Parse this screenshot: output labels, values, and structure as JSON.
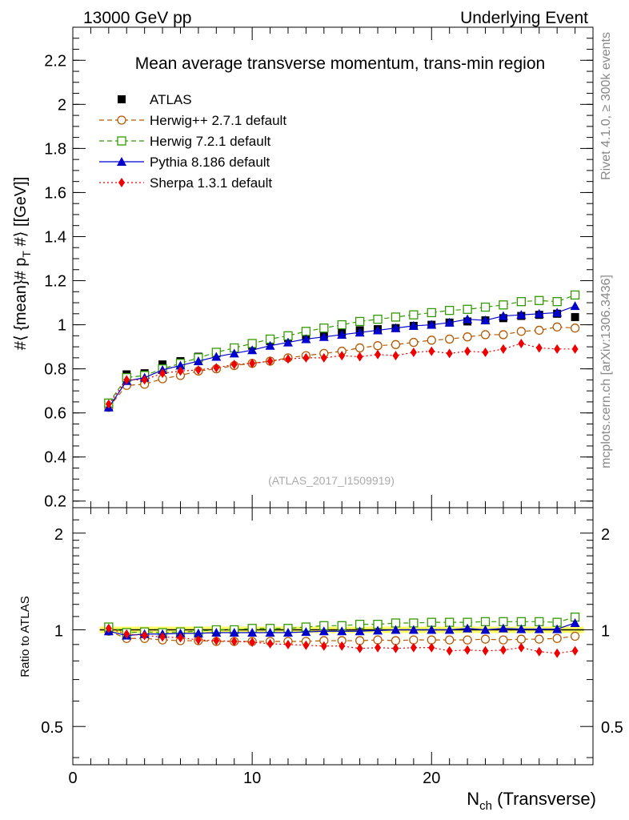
{
  "header": {
    "left": "13000 GeV pp",
    "right": "Underlying Event"
  },
  "side_labels": {
    "rivet": "Rivet 4.1.0, ≥ 300k events",
    "mcplots": "mcplots.cern.ch [arXiv:1306.3436]"
  },
  "chart_data": [
    {
      "type": "scatter",
      "title": "Mean average transverse momentum, trans-min region",
      "ylabel": "#⟨ {mean}# p_T #⟩ [[GeV]]",
      "ylabel_parts": {
        "pre": "#⟨ {mean}# p",
        "sub": "T",
        "post": " #⟩ [[GeV]]"
      },
      "xlabel": "N_ch (Transverse)",
      "xlabel_parts": {
        "main": "N",
        "sub": "ch",
        "post": " (Transverse)"
      },
      "watermark": "(ATLAS_2017_I1509919)",
      "xlim": [
        0,
        29
      ],
      "ylim": [
        0.17,
        2.35
      ],
      "y_ticks": [
        0.2,
        0.4,
        0.6,
        0.8,
        1.0,
        1.2,
        1.4,
        1.6,
        1.8,
        2.0,
        2.2
      ],
      "y_tick_labels": [
        "0.2",
        "0.4",
        "0.6",
        "0.8",
        "1",
        "1.2",
        "1.4",
        "1.6",
        "1.8",
        "2",
        "2.2"
      ],
      "legend_position": "top-left",
      "x": [
        2,
        3,
        4,
        5,
        6,
        7,
        8,
        9,
        10,
        11,
        12,
        13,
        14,
        15,
        16,
        17,
        18,
        19,
        20,
        21,
        22,
        23,
        24,
        25,
        26,
        27,
        28
      ],
      "series": [
        {
          "name": "ATLAS",
          "color": "#000000",
          "marker": "filled-square",
          "line": "none",
          "values": [
            0.63,
            0.775,
            0.78,
            0.82,
            0.835,
            0.855,
            0.87,
            0.895,
            0.905,
            0.925,
            0.94,
            0.95,
            0.955,
            0.965,
            0.975,
            0.98,
            0.985,
            0.995,
            1.0,
            1.01,
            1.015,
            1.02,
            1.03,
            1.04,
            1.045,
            1.05,
            1.035
          ]
        },
        {
          "name": "Herwig++ 2.7.1 default",
          "color": "#b35900",
          "marker": "open-circle",
          "line": "dashed",
          "values": [
            0.625,
            0.725,
            0.73,
            0.755,
            0.77,
            0.79,
            0.8,
            0.815,
            0.825,
            0.835,
            0.85,
            0.86,
            0.87,
            0.88,
            0.895,
            0.905,
            0.91,
            0.92,
            0.93,
            0.935,
            0.945,
            0.955,
            0.955,
            0.97,
            0.975,
            0.99,
            0.985
          ]
        },
        {
          "name": "Herwig 7.2.1 default",
          "color": "#339900",
          "marker": "open-square",
          "line": "dashed",
          "values": [
            0.645,
            0.76,
            0.77,
            0.8,
            0.825,
            0.85,
            0.875,
            0.895,
            0.915,
            0.935,
            0.95,
            0.97,
            0.985,
            1.0,
            1.015,
            1.025,
            1.035,
            1.045,
            1.055,
            1.065,
            1.07,
            1.08,
            1.09,
            1.105,
            1.11,
            1.105,
            1.135
          ]
        },
        {
          "name": "Pythia 8.186 default",
          "color": "#0000cc",
          "marker": "filled-triangle",
          "line": "solid",
          "values": [
            0.625,
            0.745,
            0.76,
            0.795,
            0.815,
            0.835,
            0.855,
            0.87,
            0.885,
            0.905,
            0.92,
            0.935,
            0.945,
            0.955,
            0.965,
            0.975,
            0.985,
            0.995,
            1.0,
            1.01,
            1.025,
            1.02,
            1.04,
            1.045,
            1.05,
            1.055,
            1.085
          ]
        },
        {
          "name": "Sherpa 1.3.1 default",
          "color": "#ee0000",
          "marker": "filled-diamond",
          "line": "dotted",
          "values": [
            0.64,
            0.75,
            0.75,
            0.78,
            0.79,
            0.795,
            0.805,
            0.82,
            0.825,
            0.835,
            0.845,
            0.85,
            0.85,
            0.86,
            0.855,
            0.865,
            0.86,
            0.875,
            0.88,
            0.87,
            0.88,
            0.875,
            0.89,
            0.915,
            0.895,
            0.89,
            0.89
          ]
        }
      ]
    },
    {
      "type": "scatter",
      "title": "",
      "ylabel": "Ratio to ATLAS",
      "xlabel": "N_ch (Transverse)",
      "scale": "log",
      "xlim": [
        0,
        29
      ],
      "ylim": [
        0.38,
        2.4
      ],
      "y_ticks": [
        0.5,
        1,
        2
      ],
      "y_tick_labels": [
        "0.5",
        "1",
        "2"
      ],
      "x_ticks": [
        0,
        10,
        20
      ],
      "x_tick_labels": [
        "0",
        "10",
        "20"
      ],
      "reference_band": {
        "center": 1.0,
        "color": "#ffff66",
        "edge_color": "#66cc33"
      },
      "x": [
        2,
        3,
        4,
        5,
        6,
        7,
        8,
        9,
        10,
        11,
        12,
        13,
        14,
        15,
        16,
        17,
        18,
        19,
        20,
        21,
        22,
        23,
        24,
        25,
        26,
        27,
        28
      ],
      "series": [
        {
          "name": "Herwig++ 2.7.1 default",
          "color": "#b35900",
          "marker": "open-circle",
          "line": "dashed",
          "values": [
            0.99,
            0.94,
            0.94,
            0.93,
            0.925,
            0.925,
            0.92,
            0.92,
            0.92,
            0.92,
            0.92,
            0.92,
            0.925,
            0.925,
            0.925,
            0.93,
            0.925,
            0.93,
            0.93,
            0.93,
            0.93,
            0.935,
            0.93,
            0.935,
            0.935,
            0.94,
            0.955
          ]
        },
        {
          "name": "Herwig 7.2.1 default",
          "color": "#339900",
          "marker": "open-square",
          "line": "dashed",
          "values": [
            1.02,
            0.98,
            0.985,
            0.98,
            0.985,
            0.99,
            1.0,
            1.0,
            1.01,
            1.01,
            1.01,
            1.02,
            1.03,
            1.03,
            1.04,
            1.04,
            1.05,
            1.05,
            1.055,
            1.055,
            1.055,
            1.06,
            1.06,
            1.06,
            1.06,
            1.055,
            1.095
          ]
        },
        {
          "name": "Pythia 8.186 default",
          "color": "#0000cc",
          "marker": "filled-triangle",
          "line": "solid",
          "values": [
            0.99,
            0.96,
            0.97,
            0.97,
            0.975,
            0.975,
            0.98,
            0.98,
            0.98,
            0.98,
            0.98,
            0.985,
            0.99,
            0.99,
            0.99,
            0.995,
            1.0,
            1.0,
            1.0,
            1.0,
            1.01,
            1.0,
            1.01,
            1.005,
            1.005,
            1.005,
            1.05
          ]
        },
        {
          "name": "Sherpa 1.3.1 default",
          "color": "#ee0000",
          "marker": "filled-diamond",
          "line": "dotted",
          "values": [
            1.01,
            0.97,
            0.96,
            0.95,
            0.945,
            0.93,
            0.925,
            0.92,
            0.915,
            0.905,
            0.9,
            0.895,
            0.89,
            0.89,
            0.875,
            0.88,
            0.875,
            0.88,
            0.88,
            0.86,
            0.865,
            0.86,
            0.865,
            0.88,
            0.855,
            0.845,
            0.86
          ]
        }
      ]
    }
  ]
}
